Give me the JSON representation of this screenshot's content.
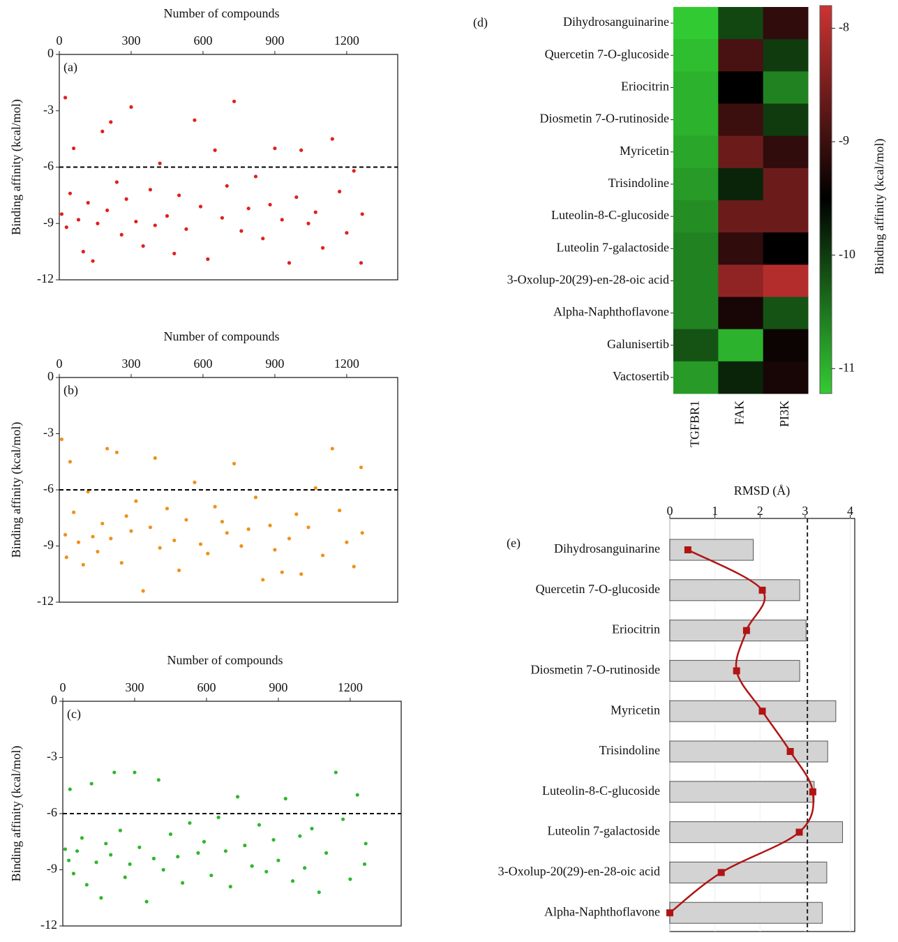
{
  "chart_data": [
    {
      "type": "scatter",
      "panel_label": "(a)",
      "xlabel": "Number of compounds",
      "ylabel": "Binding affinity (kcal/mol)",
      "color": "#e02020",
      "xlim": [
        0,
        1413
      ],
      "ylim": [
        -12,
        0
      ],
      "xticks": [
        0,
        300,
        600,
        900,
        1200
      ],
      "yticks": [
        -12,
        -9,
        -6,
        -3,
        0
      ],
      "hline": -6,
      "x": [
        10,
        25,
        30,
        45,
        60,
        80,
        100,
        120,
        140,
        160,
        180,
        200,
        215,
        240,
        260,
        280,
        300,
        320,
        350,
        380,
        400,
        420,
        450,
        480,
        500,
        530,
        565,
        590,
        620,
        650,
        680,
        700,
        730,
        760,
        790,
        820,
        850,
        880,
        900,
        930,
        960,
        990,
        1010,
        1040,
        1070,
        1100,
        1140,
        1170,
        1200,
        1230,
        1260,
        1265
      ],
      "values": [
        -8.5,
        -2.3,
        -9.2,
        -7.4,
        -5.0,
        -8.8,
        -10.5,
        -7.9,
        -11.0,
        -9.0,
        -4.1,
        -8.3,
        -3.6,
        -6.8,
        -9.6,
        -7.7,
        -2.8,
        -8.9,
        -10.2,
        -7.2,
        -9.1,
        -5.8,
        -8.6,
        -10.6,
        -7.5,
        -9.3,
        -3.5,
        -8.1,
        -10.9,
        -5.1,
        -8.7,
        -7.0,
        -2.5,
        -9.4,
        -8.2,
        -6.5,
        -9.8,
        -8.0,
        -5.0,
        -8.8,
        -11.1,
        -7.6,
        -5.1,
        -9.0,
        -8.4,
        -10.3,
        -4.5,
        -7.3,
        -9.5,
        -6.2,
        -11.1,
        -8.5
      ]
    },
    {
      "type": "scatter",
      "panel_label": "(b)",
      "xlabel": "Number of compounds",
      "ylabel": "Binding affinity (kcal/mol)",
      "color": "#f0901a",
      "xlim": [
        0,
        1413
      ],
      "ylim": [
        -12,
        0
      ],
      "xticks": [
        0,
        300,
        600,
        900,
        1200
      ],
      "yticks": [
        -12,
        -9,
        -6,
        -3,
        0
      ],
      "hline": -6,
      "x": [
        10,
        25,
        30,
        45,
        60,
        80,
        100,
        120,
        140,
        160,
        180,
        200,
        215,
        240,
        260,
        280,
        300,
        320,
        350,
        380,
        400,
        420,
        450,
        480,
        500,
        530,
        565,
        590,
        620,
        650,
        680,
        700,
        730,
        760,
        790,
        820,
        850,
        880,
        900,
        930,
        960,
        990,
        1010,
        1040,
        1070,
        1100,
        1140,
        1170,
        1200,
        1230,
        1260,
        1265
      ],
      "values": [
        -3.3,
        -8.4,
        -9.6,
        -4.5,
        -7.2,
        -8.8,
        -10.0,
        -6.1,
        -8.5,
        -9.3,
        -7.8,
        -3.8,
        -8.6,
        -4.0,
        -9.9,
        -7.4,
        -8.2,
        -6.6,
        -11.4,
        -8.0,
        -4.3,
        -9.1,
        -7.0,
        -8.7,
        -10.3,
        -7.6,
        -5.6,
        -8.9,
        -9.4,
        -6.9,
        -7.7,
        -8.3,
        -4.6,
        -9.0,
        -8.1,
        -6.4,
        -10.8,
        -7.9,
        -9.2,
        -10.4,
        -8.6,
        -7.3,
        -10.5,
        -8.0,
        -5.9,
        -9.5,
        -3.8,
        -7.1,
        -8.8,
        -10.1,
        -4.8,
        -8.3
      ]
    },
    {
      "type": "scatter",
      "panel_label": "(c)",
      "xlabel": "Number of compounds",
      "ylabel": "Binding affinity (kcal/mol)",
      "color": "#2db82d",
      "xlim": [
        0,
        1413
      ],
      "ylim": [
        -12,
        0
      ],
      "xticks": [
        0,
        300,
        600,
        900,
        1200
      ],
      "yticks": [
        -12,
        -9,
        -6,
        -3,
        0
      ],
      "hline": -6,
      "x": [
        10,
        25,
        30,
        45,
        60,
        80,
        100,
        120,
        140,
        160,
        180,
        200,
        215,
        240,
        260,
        280,
        300,
        320,
        350,
        380,
        400,
        420,
        450,
        480,
        500,
        530,
        565,
        590,
        620,
        650,
        680,
        700,
        730,
        760,
        790,
        820,
        850,
        880,
        900,
        930,
        960,
        990,
        1010,
        1040,
        1070,
        1100,
        1140,
        1170,
        1200,
        1230,
        1260,
        1265
      ],
      "values": [
        -7.9,
        -8.5,
        -4.7,
        -9.2,
        -8.0,
        -7.3,
        -9.8,
        -4.4,
        -8.6,
        -10.5,
        -7.6,
        -8.2,
        -3.8,
        -6.9,
        -9.4,
        -8.7,
        -3.8,
        -7.8,
        -10.7,
        -8.4,
        -4.2,
        -9.0,
        -7.1,
        -8.3,
        -9.7,
        -6.5,
        -8.1,
        -7.5,
        -9.3,
        -6.2,
        -8.0,
        -9.9,
        -5.1,
        -7.7,
        -8.8,
        -6.6,
        -9.1,
        -7.4,
        -8.5,
        -5.2,
        -9.6,
        -7.2,
        -8.9,
        -6.8,
        -10.2,
        -8.1,
        -3.8,
        -6.3,
        -9.5,
        -5.0,
        -8.7,
        -7.6
      ]
    },
    {
      "type": "heatmap",
      "panel_label": "(d)",
      "colorbar_label": "Binding affinity (kcal/mol)",
      "rows": [
        "Dihydrosanguinarine",
        "Quercetin 7-O-glucoside",
        "Eriocitrin",
        "Diosmetin 7-O-rutinoside",
        "Myricetin",
        "Trisindoline",
        "Luteolin-8-C-glucoside",
        "Luteolin 7-galactoside",
        "3-Oxolup-20(29)-en-28-oic acid",
        "Alpha-Naphthoflavone",
        "Galunisertib",
        "Vactosertib"
      ],
      "columns": [
        "TGFBR1",
        "FAK",
        "PI3K"
      ],
      "values": [
        [
          -11.2,
          -10.1,
          -9.1
        ],
        [
          -11.1,
          -8.9,
          -10.0
        ],
        [
          -11.0,
          -9.5,
          -10.6
        ],
        [
          -11.0,
          -9.0,
          -10.0
        ],
        [
          -10.9,
          -8.6,
          -9.1
        ],
        [
          -10.8,
          -9.8,
          -8.6
        ],
        [
          -10.7,
          -8.6,
          -8.6
        ],
        [
          -10.6,
          -9.1,
          -9.5
        ],
        [
          -10.6,
          -8.3,
          -8.0
        ],
        [
          -10.6,
          -9.3,
          -10.2
        ],
        [
          -10.2,
          -11.0,
          -9.4
        ],
        [
          -10.8,
          -9.8,
          -9.3
        ]
      ],
      "zlim": [
        -11.22,
        -7.8
      ],
      "zticks": [
        -11,
        -10,
        -9,
        -8
      ],
      "colorscale": [
        {
          "value": -11.22,
          "color": "#33cc33"
        },
        {
          "value": -9.5,
          "color": "#000000"
        },
        {
          "value": -7.8,
          "color": "#cc3333"
        }
      ]
    },
    {
      "type": "bar",
      "orientation": "horizontal",
      "panel_label": "(e)",
      "xlabel": "RMSD (Å)",
      "categories": [
        "Dihydrosanguinarine",
        "Quercetin 7-O-glucoside",
        "Eriocitrin",
        "Diosmetin 7-O-rutinoside",
        "Myricetin",
        "Trisindoline",
        "Luteolin-8-C-glucoside",
        "Luteolin 7-galactoside",
        "3-Oxolup-20(29)-en-28-oic acid",
        "Alpha-Naphthoflavone"
      ],
      "xlim": [
        0,
        4.1
      ],
      "xticks": [
        0,
        1,
        2,
        3,
        4
      ],
      "vline": 3.05,
      "series": [
        {
          "type": "bar",
          "color": "#d3d3d3",
          "values": [
            1.85,
            2.88,
            3.02,
            2.88,
            3.68,
            3.5,
            3.2,
            3.83,
            3.48,
            3.38
          ]
        },
        {
          "type": "line",
          "color": "#b01414",
          "values": [
            0.4,
            2.05,
            1.7,
            1.48,
            2.05,
            2.67,
            3.17,
            2.87,
            1.14,
            0.0
          ]
        }
      ]
    }
  ]
}
